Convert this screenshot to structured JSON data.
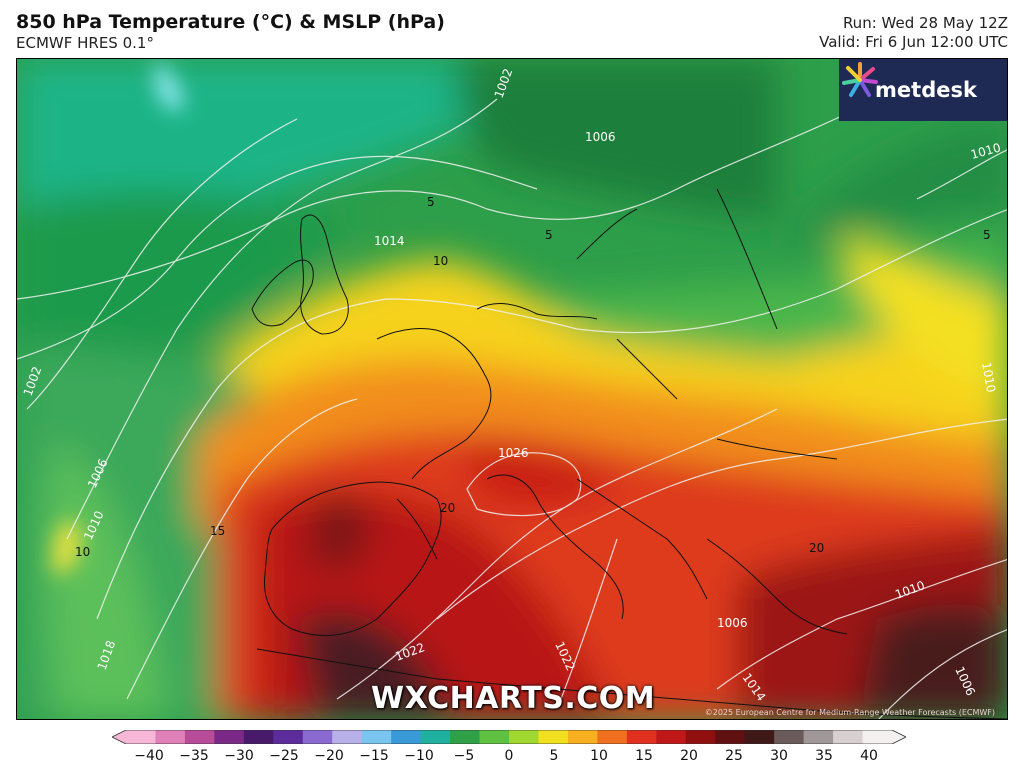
{
  "header": {
    "title": "850 hPa Temperature (°C) & MSLP (hPa)",
    "model": "ECMWF HRES 0.1°",
    "run": "Run: Wed 28 May 12Z",
    "valid": "Valid: Fri 6 Jun 12:00 UTC"
  },
  "branding": {
    "logo_text": "metdesk",
    "watermark": "WXCHARTS.COM",
    "copyright": "©2025 European Centre for Medium-Range Weather Forecasts (ECMWF)"
  },
  "map": {
    "isobar_labels": [
      "1002",
      "1006",
      "1010",
      "1014",
      "1002",
      "1006",
      "1010",
      "1018",
      "1026",
      "1022",
      "1022",
      "1014",
      "1010",
      "1006",
      "1010",
      "1006"
    ],
    "temperature_labels": [
      "5",
      "10",
      "5",
      "5",
      "15",
      "20",
      "20",
      "10"
    ]
  },
  "colorbar": {
    "ticks": [
      "−40",
      "−35",
      "−30",
      "−25",
      "−20",
      "−15",
      "−10",
      "−5",
      "0",
      "5",
      "10",
      "15",
      "20",
      "25",
      "30",
      "35",
      "40"
    ],
    "colors": [
      "#f6b8d6",
      "#e080b8",
      "#b84c98",
      "#7a2a86",
      "#4a1a6a",
      "#5c2c9c",
      "#8a6ad0",
      "#b8b0e8",
      "#7ac4f0",
      "#3a9ad8",
      "#20b0a0",
      "#30a048",
      "#60c040",
      "#a0d830",
      "#f0e020",
      "#f8b020",
      "#f07020",
      "#e03020",
      "#c01818",
      "#901010",
      "#601010",
      "#401818",
      "#6a5a5a",
      "#a09898",
      "#d8d0d0",
      "#f4f0f0"
    ]
  }
}
